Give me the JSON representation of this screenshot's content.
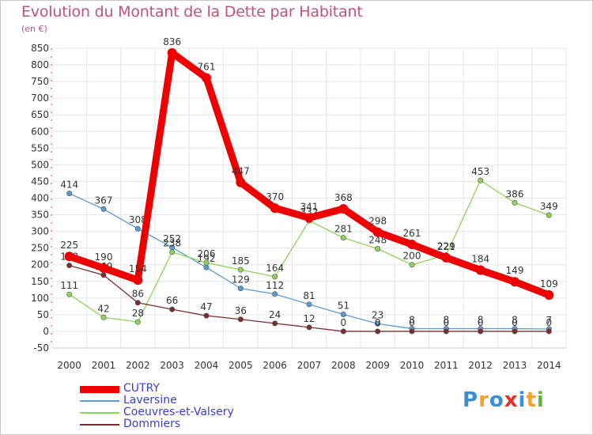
{
  "title": "Evolution du Montant de la Dette par Habitant",
  "unit": "(en €)",
  "logo": {
    "text": "Proxiti",
    "colors": [
      "#3a8fd8",
      "#f2a12b",
      "#3a8fd8",
      "#e8302b",
      "#3a8fd8",
      "#f2a12b",
      "#5cb82c"
    ]
  },
  "chart_data": {
    "type": "line",
    "title": "Evolution du Montant de la Dette par Habitant",
    "ylabel": "(en €)",
    "x": [
      "2000",
      "2001",
      "2002",
      "2003",
      "2004",
      "2005",
      "2006",
      "2007",
      "2008",
      "2009",
      "2010",
      "2011",
      "2012",
      "2013",
      "2014"
    ],
    "ylim": [
      -50,
      850
    ],
    "yticks": [
      -50,
      0,
      50,
      100,
      150,
      200,
      250,
      300,
      350,
      400,
      450,
      500,
      550,
      600,
      650,
      700,
      750,
      800,
      850
    ],
    "grid": true,
    "legend": "bottom-left",
    "series": [
      {
        "name": "Laversine",
        "color": "#5b9bd5",
        "values": [
          414,
          367,
          308,
          252,
          192,
          129,
          112,
          81,
          51,
          23,
          8,
          8,
          8,
          8,
          7
        ]
      },
      {
        "name": "Coeuvres-et-Valsery",
        "color": "#8fd45a",
        "values": [
          111,
          42,
          28,
          238,
          206,
          185,
          164,
          332,
          281,
          248,
          200,
          229,
          453,
          386,
          349
        ]
      },
      {
        "name": "Dommiers",
        "color": "#7a2e2e",
        "values": [
          198,
          169,
          86,
          66,
          47,
          36,
          24,
          12,
          0,
          0,
          0,
          0,
          0,
          0,
          0
        ]
      },
      {
        "name": "CUTRY",
        "color": "#ee0000",
        "values": [
          225,
          190,
          154,
          836,
          761,
          447,
          370,
          341,
          368,
          298,
          261,
          221,
          184,
          149,
          109
        ]
      }
    ],
    "point_labels": [
      {
        "series": "Laversine",
        "labels": [
          "414",
          "367",
          "308",
          "252",
          "192",
          "129",
          "112",
          "81",
          "51",
          "23",
          "8",
          "8",
          "8",
          "8",
          "7"
        ]
      },
      {
        "series": "Coeuvres-et-Valsery",
        "labels": [
          "111",
          "42",
          "28",
          "238",
          "206",
          "185",
          "164",
          "332",
          "281",
          "248",
          "200",
          "229",
          "453",
          "386",
          "349"
        ]
      },
      {
        "series": "Dommiers",
        "labels": [
          "198",
          "169",
          "86",
          "66",
          "47",
          "36",
          "24",
          "12",
          "0",
          "0",
          "0",
          "0",
          "0",
          "0",
          "0"
        ]
      },
      {
        "series": "CUTRY",
        "labels": [
          "225",
          "190",
          "154",
          "836",
          "761",
          "447",
          "370",
          "341",
          "368",
          "298",
          "261",
          "221",
          "184",
          "149",
          "109"
        ]
      }
    ]
  },
  "legend_items": [
    {
      "label": "CUTRY",
      "color": "#ee0000",
      "thick": true
    },
    {
      "label": "Laversine",
      "color": "#5b9bd5",
      "thick": false
    },
    {
      "label": "Coeuvres-et-Valsery",
      "color": "#8fd45a",
      "thick": false
    },
    {
      "label": "Dommiers",
      "color": "#7a2e2e",
      "thick": false
    }
  ]
}
